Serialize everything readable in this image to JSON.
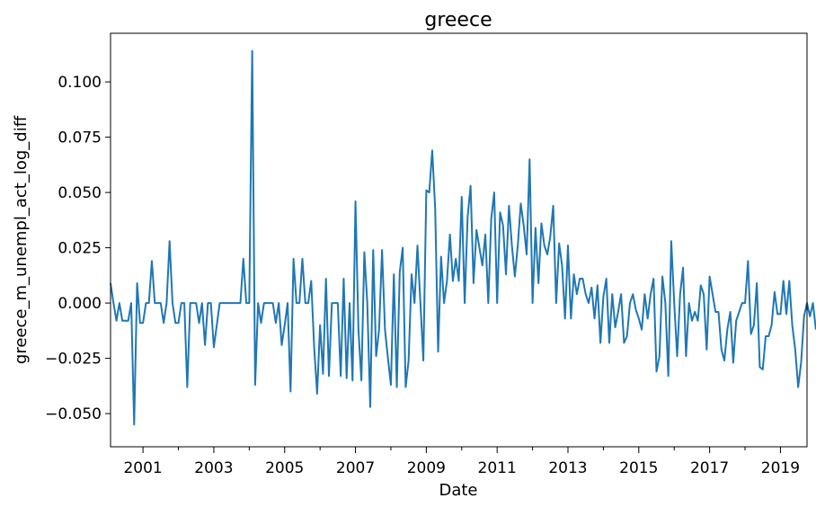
{
  "chart_data": {
    "type": "line",
    "title": "greece",
    "xlabel": "Date",
    "ylabel": "greece_m_unempl_act_log_diff",
    "line_color": "#1f77b4",
    "grid": false,
    "legend": "none",
    "xlim": [
      "2000-02",
      "2019-10"
    ],
    "ylim": [
      -0.065,
      0.122
    ],
    "x_ticks": [
      "2001",
      "2003",
      "2005",
      "2007",
      "2009",
      "2011",
      "2013",
      "2015",
      "2017",
      "2019"
    ],
    "y_ticks": [
      -0.05,
      -0.025,
      0.0,
      0.025,
      0.05,
      0.075,
      0.1
    ],
    "y_tick_labels": [
      "−0.050",
      "−0.025",
      "0.000",
      "0.025",
      "0.050",
      "0.075",
      "0.100"
    ],
    "x_start": "2000-02",
    "x_step": "1 month",
    "values": [
      0.009,
      0.0,
      -0.008,
      0.0,
      -0.008,
      -0.008,
      -0.008,
      0.0,
      -0.055,
      0.009,
      -0.009,
      -0.009,
      0.0,
      0.0,
      0.019,
      0.0,
      0.0,
      0.0,
      -0.009,
      0.0,
      0.028,
      0.0,
      -0.009,
      -0.009,
      0.0,
      0.0,
      -0.038,
      0.0,
      0.0,
      0.0,
      -0.009,
      0.0,
      -0.019,
      0.0,
      0.0,
      -0.02,
      -0.01,
      0.0,
      0.0,
      0.0,
      0.0,
      0.0,
      0.0,
      0.0,
      0.0,
      0.02,
      0.0,
      0.0,
      0.114,
      -0.037,
      0.0,
      -0.009,
      0.0,
      0.0,
      0.0,
      0.0,
      -0.009,
      0.0,
      -0.019,
      -0.01,
      0.0,
      -0.04,
      0.02,
      0.0,
      0.0,
      0.02,
      0.0,
      0.0,
      0.01,
      -0.02,
      -0.041,
      -0.01,
      -0.032,
      0.011,
      -0.033,
      0.0,
      0.0,
      0.0,
      -0.033,
      0.011,
      -0.034,
      0.0,
      -0.035,
      0.046,
      -0.012,
      -0.035,
      0.023,
      0.0,
      -0.047,
      0.024,
      -0.024,
      -0.012,
      0.024,
      -0.012,
      -0.025,
      -0.037,
      0.013,
      -0.038,
      0.014,
      0.025,
      -0.038,
      -0.026,
      0.013,
      0.0,
      0.026,
      0.0,
      -0.026,
      0.051,
      0.05,
      0.069,
      0.043,
      -0.022,
      0.021,
      0.0,
      0.01,
      0.031,
      0.01,
      0.02,
      0.01,
      0.048,
      0.0,
      0.039,
      0.053,
      0.009,
      0.033,
      0.025,
      0.017,
      0.031,
      0.0,
      0.038,
      0.05,
      0.0,
      0.041,
      0.035,
      0.013,
      0.044,
      0.026,
      0.012,
      0.026,
      0.045,
      0.035,
      0.022,
      0.065,
      0.0,
      0.034,
      0.009,
      0.036,
      0.026,
      0.022,
      0.03,
      0.044,
      0.0,
      0.027,
      0.017,
      -0.007,
      0.026,
      -0.007,
      0.013,
      0.004,
      0.011,
      0.011,
      0.004,
      0.0,
      0.007,
      -0.007,
      0.008,
      -0.018,
      0.003,
      0.011,
      -0.018,
      0.004,
      -0.011,
      -0.004,
      0.004,
      -0.018,
      -0.015,
      0.0,
      0.004,
      -0.003,
      -0.007,
      -0.012,
      0.004,
      -0.007,
      0.004,
      0.011,
      -0.031,
      -0.024,
      0.012,
      0.0,
      -0.033,
      0.028,
      0.0,
      -0.024,
      0.004,
      0.016,
      -0.024,
      0.0,
      -0.008,
      -0.004,
      -0.008,
      0.008,
      0.004,
      -0.021,
      0.012,
      0.004,
      -0.004,
      -0.004,
      -0.021,
      -0.026,
      -0.012,
      -0.004,
      -0.027,
      -0.008,
      -0.004,
      0.0,
      0.0,
      0.019,
      -0.014,
      -0.01,
      0.009,
      -0.029,
      -0.03,
      -0.015,
      -0.015,
      -0.01,
      0.005,
      -0.005,
      -0.005,
      0.01,
      -0.005,
      0.01,
      -0.01,
      -0.021,
      -0.038,
      -0.027,
      -0.006,
      0.0,
      -0.006,
      0.0,
      -0.012
    ]
  }
}
